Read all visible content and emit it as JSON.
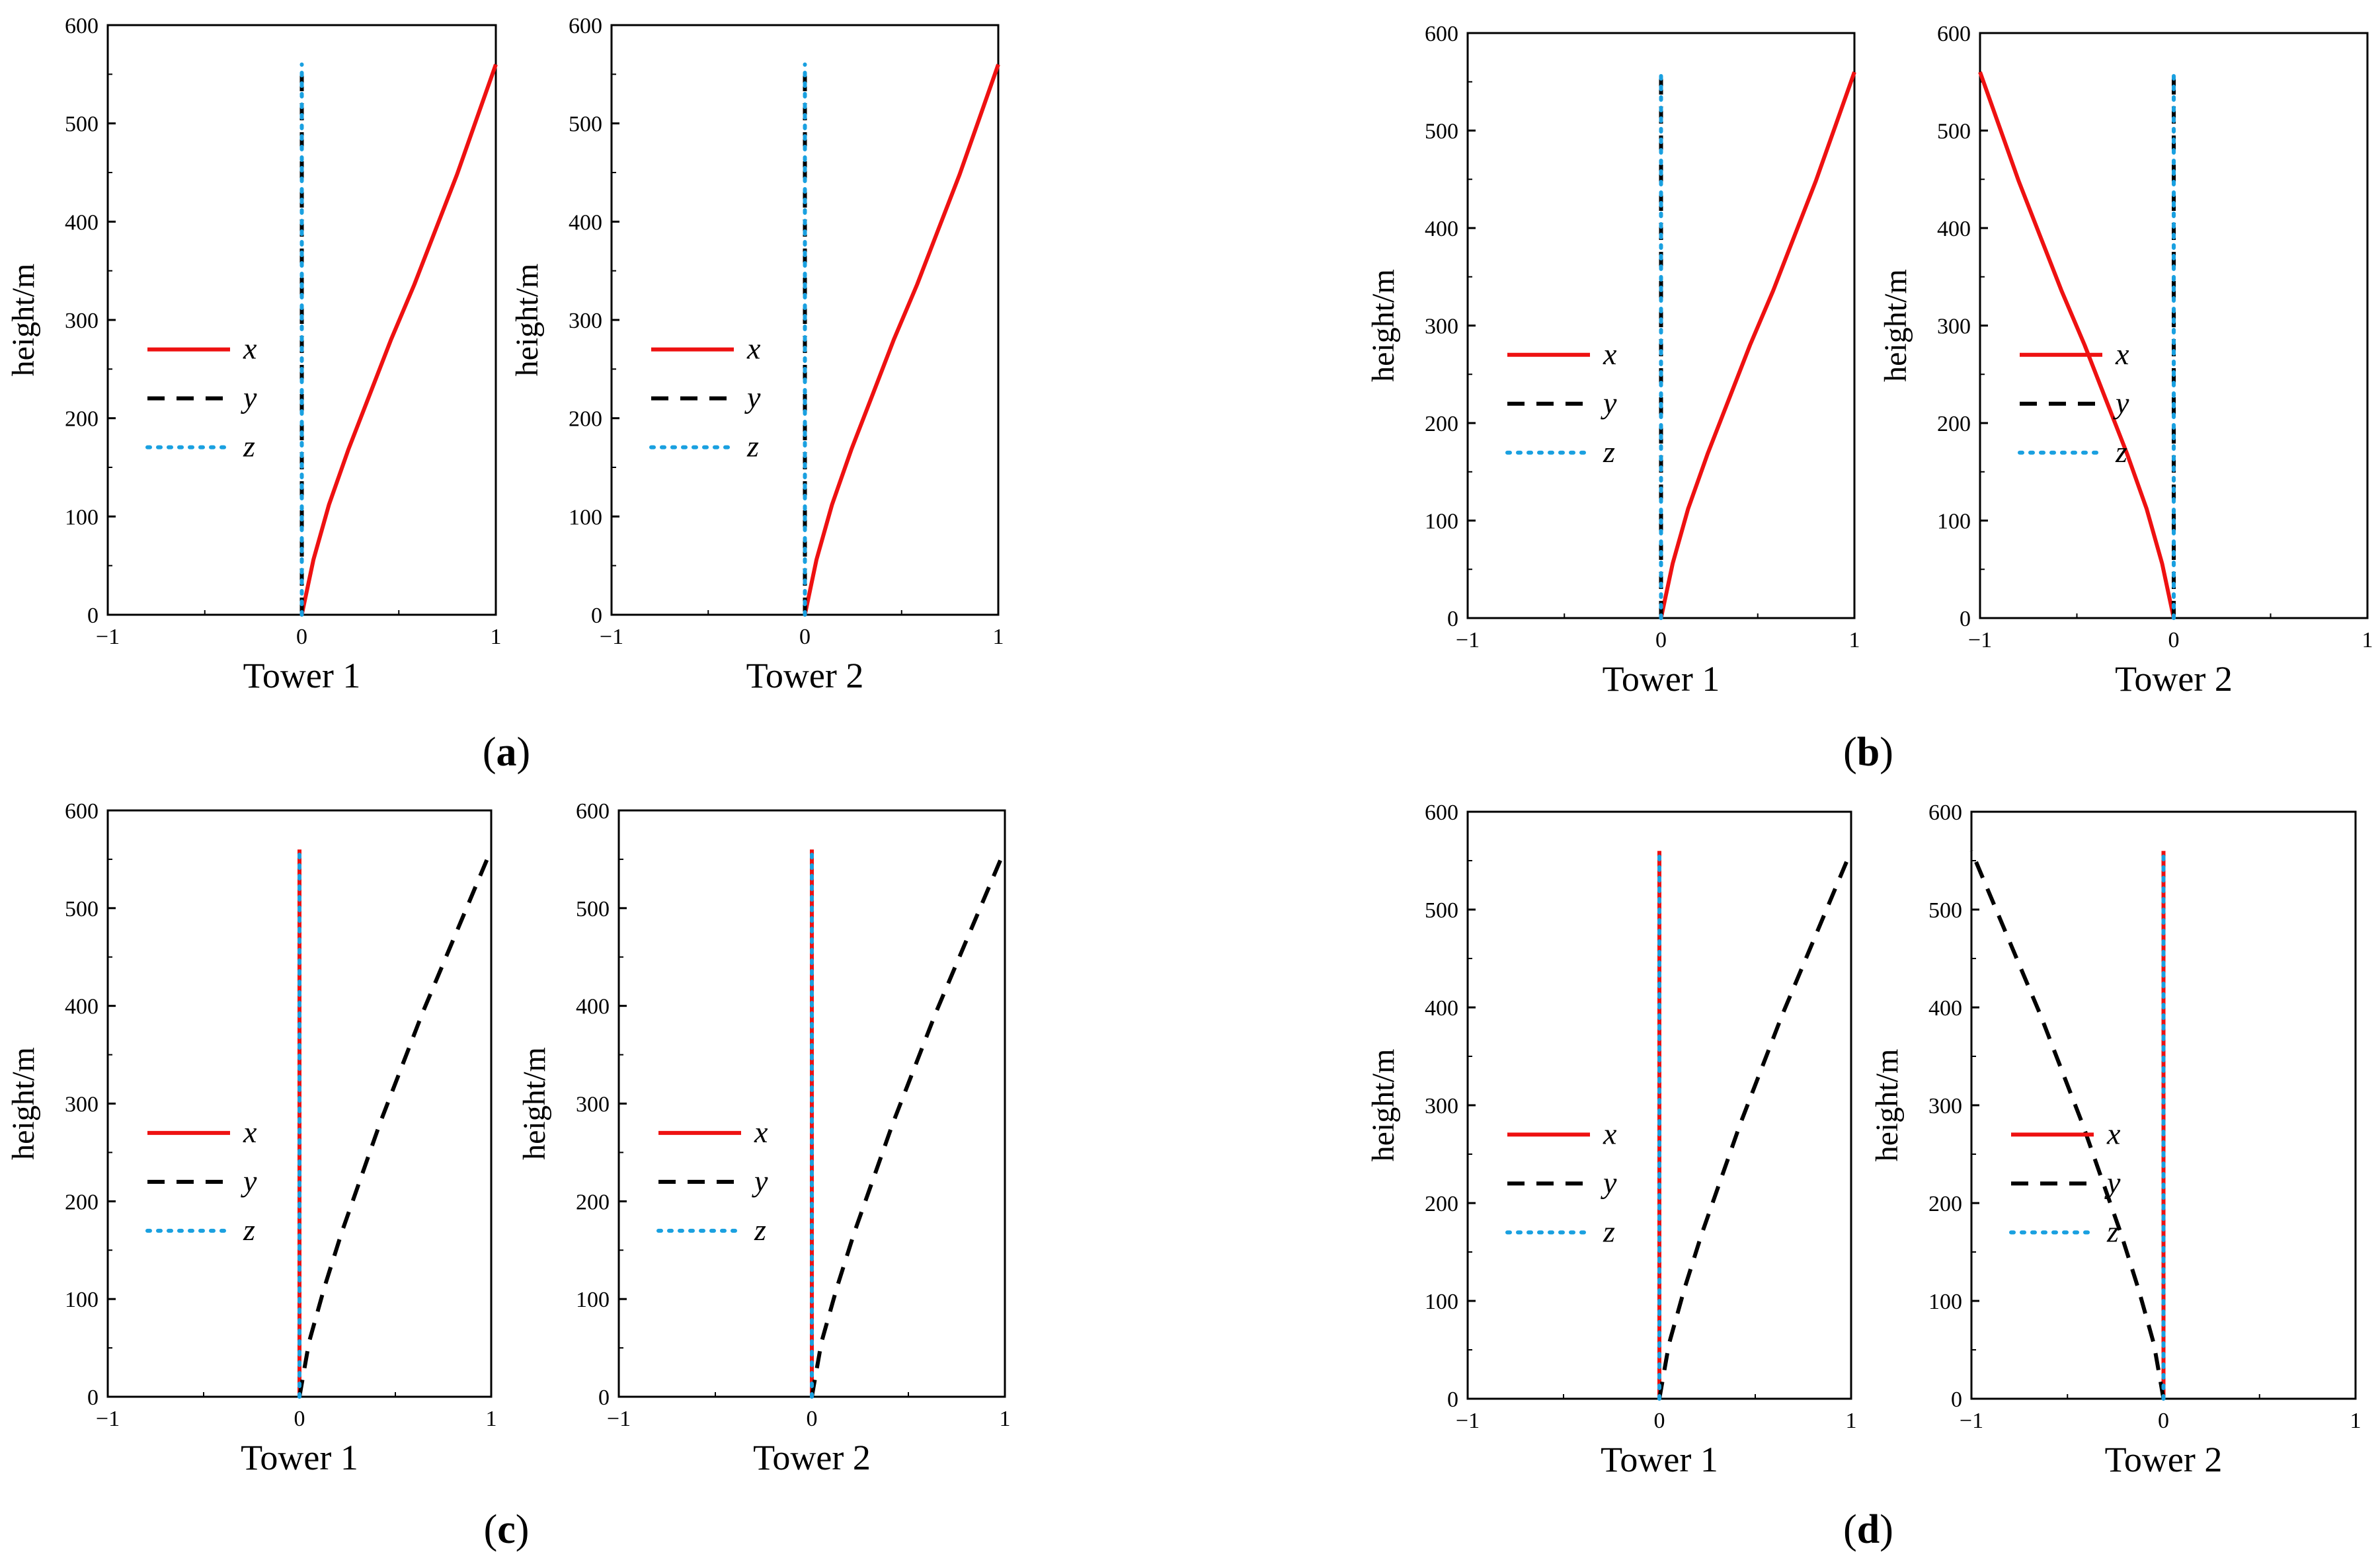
{
  "colors": {
    "x": "#ee1111",
    "y": "#000000",
    "z": "#1aa0e0",
    "axis": "#000000"
  },
  "figure_labels": [
    {
      "id": "a",
      "open": "(",
      "letter": "a",
      "close": ")"
    },
    {
      "id": "b",
      "open": "(",
      "letter": "b",
      "close": ")"
    },
    {
      "id": "c",
      "open": "(",
      "letter": "c",
      "close": ")"
    },
    {
      "id": "d",
      "open": "(",
      "letter": "d",
      "close": ")"
    }
  ],
  "chart_data": [
    {
      "id": "a1",
      "group": "a",
      "type": "line",
      "xlabel": "Tower 1",
      "ylabel": "height/m",
      "xlim": [
        -1,
        1
      ],
      "ylim": [
        0,
        600
      ],
      "xticks": [
        "−1",
        "0",
        "1"
      ],
      "yticks": [
        "0",
        "100",
        "200",
        "300",
        "400",
        "500",
        "600"
      ],
      "legend": [
        "x",
        "y",
        "z"
      ],
      "legend_loc": "center-left",
      "series": [
        {
          "name": "x",
          "style": "solid",
          "points": [
            [
              0,
              0
            ],
            [
              0.06,
              56
            ],
            [
              0.14,
              112
            ],
            [
              0.24,
              168
            ],
            [
              0.35,
              224
            ],
            [
              0.46,
              280
            ],
            [
              0.58,
              336
            ],
            [
              0.69,
              392
            ],
            [
              0.8,
              448
            ],
            [
              0.9,
              504
            ],
            [
              1.0,
              560
            ]
          ]
        },
        {
          "name": "y",
          "style": "dashed",
          "points": [
            [
              0,
              0
            ],
            [
              0,
              560
            ]
          ]
        },
        {
          "name": "z",
          "style": "dotted",
          "points": [
            [
              0,
              0
            ],
            [
              0,
              560
            ]
          ]
        }
      ]
    },
    {
      "id": "a2",
      "group": "a",
      "type": "line",
      "xlabel": "Tower 2",
      "ylabel": "height/m",
      "xlim": [
        -1,
        1
      ],
      "ylim": [
        0,
        600
      ],
      "xticks": [
        "−1",
        "0",
        "1"
      ],
      "yticks": [
        "0",
        "100",
        "200",
        "300",
        "400",
        "500",
        "600"
      ],
      "legend": [
        "x",
        "y",
        "z"
      ],
      "legend_loc": "center-left",
      "series": [
        {
          "name": "x",
          "style": "solid",
          "points": [
            [
              0,
              0
            ],
            [
              0.06,
              56
            ],
            [
              0.14,
              112
            ],
            [
              0.24,
              168
            ],
            [
              0.35,
              224
            ],
            [
              0.46,
              280
            ],
            [
              0.58,
              336
            ],
            [
              0.69,
              392
            ],
            [
              0.8,
              448
            ],
            [
              0.9,
              504
            ],
            [
              1.0,
              560
            ]
          ]
        },
        {
          "name": "y",
          "style": "dashed",
          "points": [
            [
              0,
              0
            ],
            [
              0,
              560
            ]
          ]
        },
        {
          "name": "z",
          "style": "dotted",
          "points": [
            [
              0,
              0
            ],
            [
              0,
              560
            ]
          ]
        }
      ]
    },
    {
      "id": "b1",
      "group": "b",
      "type": "line",
      "xlabel": "Tower 1",
      "ylabel": "height/m",
      "xlim": [
        -1,
        1
      ],
      "ylim": [
        0,
        600
      ],
      "xticks": [
        "−1",
        "0",
        "1"
      ],
      "yticks": [
        "0",
        "100",
        "200",
        "300",
        "400",
        "500",
        "600"
      ],
      "legend": [
        "x",
        "y",
        "z"
      ],
      "legend_loc": "center-left",
      "series": [
        {
          "name": "x",
          "style": "solid",
          "points": [
            [
              0,
              0
            ],
            [
              0.06,
              56
            ],
            [
              0.14,
              112
            ],
            [
              0.24,
              168
            ],
            [
              0.35,
              224
            ],
            [
              0.46,
              280
            ],
            [
              0.58,
              336
            ],
            [
              0.69,
              392
            ],
            [
              0.8,
              448
            ],
            [
              0.9,
              504
            ],
            [
              1.0,
              560
            ]
          ]
        },
        {
          "name": "y",
          "style": "dashed",
          "points": [
            [
              0,
              0
            ],
            [
              0,
              560
            ]
          ]
        },
        {
          "name": "z",
          "style": "dotted",
          "points": [
            [
              0,
              0
            ],
            [
              0,
              560
            ]
          ]
        }
      ]
    },
    {
      "id": "b2",
      "group": "b",
      "type": "line",
      "xlabel": "Tower 2",
      "ylabel": "height/m",
      "xlim": [
        -1,
        1
      ],
      "ylim": [
        0,
        600
      ],
      "xticks": [
        "−1",
        "0",
        "1"
      ],
      "yticks": [
        "0",
        "100",
        "200",
        "300",
        "400",
        "500",
        "600"
      ],
      "legend": [
        "x",
        "y",
        "z"
      ],
      "legend_loc": "center-left",
      "series": [
        {
          "name": "x",
          "style": "solid",
          "points": [
            [
              0,
              0
            ],
            [
              -0.06,
              56
            ],
            [
              -0.14,
              112
            ],
            [
              -0.24,
              168
            ],
            [
              -0.35,
              224
            ],
            [
              -0.46,
              280
            ],
            [
              -0.58,
              336
            ],
            [
              -0.69,
              392
            ],
            [
              -0.8,
              448
            ],
            [
              -0.9,
              504
            ],
            [
              -1.0,
              560
            ]
          ]
        },
        {
          "name": "y",
          "style": "dashed",
          "points": [
            [
              0,
              0
            ],
            [
              0,
              560
            ]
          ]
        },
        {
          "name": "z",
          "style": "dotted",
          "points": [
            [
              0,
              0
            ],
            [
              0,
              560
            ]
          ]
        }
      ]
    },
    {
      "id": "c1",
      "group": "c",
      "type": "line",
      "xlabel": "Tower 1",
      "ylabel": "height/m",
      "xlim": [
        -1,
        1
      ],
      "ylim": [
        0,
        600
      ],
      "xticks": [
        "−1",
        "0",
        "1"
      ],
      "yticks": [
        "0",
        "100",
        "200",
        "300",
        "400",
        "500",
        "600"
      ],
      "legend": [
        "x",
        "y",
        "z"
      ],
      "legend_loc": "center-left",
      "series": [
        {
          "name": "x",
          "style": "solid",
          "points": [
            [
              0,
              0
            ],
            [
              0,
              560
            ]
          ]
        },
        {
          "name": "y",
          "style": "dashed",
          "points": [
            [
              0,
              0
            ],
            [
              0.05,
              56
            ],
            [
              0.13,
              112
            ],
            [
              0.22,
              168
            ],
            [
              0.32,
              224
            ],
            [
              0.42,
              280
            ],
            [
              0.53,
              336
            ],
            [
              0.64,
              392
            ],
            [
              0.76,
              448
            ],
            [
              0.88,
              504
            ],
            [
              1.0,
              560
            ]
          ]
        },
        {
          "name": "z",
          "style": "dotted",
          "points": [
            [
              0,
              0
            ],
            [
              0,
              560
            ]
          ]
        }
      ]
    },
    {
      "id": "c2",
      "group": "c",
      "type": "line",
      "xlabel": "Tower 2",
      "ylabel": "height/m",
      "xlim": [
        -1,
        1
      ],
      "ylim": [
        0,
        600
      ],
      "xticks": [
        "−1",
        "0",
        "1"
      ],
      "yticks": [
        "0",
        "100",
        "200",
        "300",
        "400",
        "500",
        "600"
      ],
      "legend": [
        "x",
        "y",
        "z"
      ],
      "legend_loc": "center-left",
      "series": [
        {
          "name": "x",
          "style": "solid",
          "points": [
            [
              0,
              0
            ],
            [
              0,
              560
            ]
          ]
        },
        {
          "name": "y",
          "style": "dashed",
          "points": [
            [
              0,
              0
            ],
            [
              0.05,
              56
            ],
            [
              0.13,
              112
            ],
            [
              0.22,
              168
            ],
            [
              0.32,
              224
            ],
            [
              0.42,
              280
            ],
            [
              0.53,
              336
            ],
            [
              0.64,
              392
            ],
            [
              0.76,
              448
            ],
            [
              0.88,
              504
            ],
            [
              1.0,
              560
            ]
          ]
        },
        {
          "name": "z",
          "style": "dotted",
          "points": [
            [
              0,
              0
            ],
            [
              0,
              560
            ]
          ]
        }
      ]
    },
    {
      "id": "d1",
      "group": "d",
      "type": "line",
      "xlabel": "Tower 1",
      "ylabel": "height/m",
      "xlim": [
        -1,
        1
      ],
      "ylim": [
        0,
        600
      ],
      "xticks": [
        "−1",
        "0",
        "1"
      ],
      "yticks": [
        "0",
        "100",
        "200",
        "300",
        "400",
        "500",
        "600"
      ],
      "legend": [
        "x",
        "y",
        "z"
      ],
      "legend_loc": "center-left",
      "series": [
        {
          "name": "x",
          "style": "solid",
          "points": [
            [
              0,
              0
            ],
            [
              0,
              560
            ]
          ]
        },
        {
          "name": "y",
          "style": "dashed",
          "points": [
            [
              0,
              0
            ],
            [
              0.05,
              56
            ],
            [
              0.13,
              112
            ],
            [
              0.22,
              168
            ],
            [
              0.32,
              224
            ],
            [
              0.42,
              280
            ],
            [
              0.53,
              336
            ],
            [
              0.64,
              392
            ],
            [
              0.76,
              448
            ],
            [
              0.88,
              504
            ],
            [
              1.0,
              560
            ]
          ]
        },
        {
          "name": "z",
          "style": "dotted",
          "points": [
            [
              0,
              0
            ],
            [
              0,
              560
            ]
          ]
        }
      ]
    },
    {
      "id": "d2",
      "group": "d",
      "type": "line",
      "xlabel": "Tower 2",
      "ylabel": "height/m",
      "xlim": [
        -1,
        1
      ],
      "ylim": [
        0,
        600
      ],
      "xticks": [
        "−1",
        "0",
        "1"
      ],
      "yticks": [
        "0",
        "100",
        "200",
        "300",
        "400",
        "500",
        "600"
      ],
      "legend": [
        "x",
        "y",
        "z"
      ],
      "legend_loc": "center-left",
      "series": [
        {
          "name": "x",
          "style": "solid",
          "points": [
            [
              0,
              0
            ],
            [
              0,
              560
            ]
          ]
        },
        {
          "name": "y",
          "style": "dashed",
          "points": [
            [
              0,
              0
            ],
            [
              -0.05,
              56
            ],
            [
              -0.13,
              112
            ],
            [
              -0.22,
              168
            ],
            [
              -0.32,
              224
            ],
            [
              -0.42,
              280
            ],
            [
              -0.53,
              336
            ],
            [
              -0.64,
              392
            ],
            [
              -0.76,
              448
            ],
            [
              -0.88,
              504
            ],
            [
              -1.0,
              560
            ]
          ]
        },
        {
          "name": "z",
          "style": "dotted",
          "points": [
            [
              0,
              0
            ],
            [
              0,
              560
            ]
          ]
        }
      ]
    }
  ]
}
